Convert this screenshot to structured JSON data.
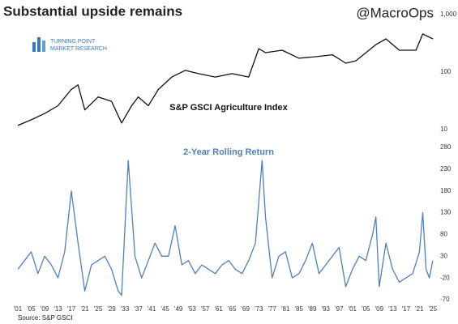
{
  "title": "Substantial upside remains",
  "handle": "@MacroOps",
  "logo": {
    "line1": "TURNING POINT",
    "line2": "MARKET RESEARCH"
  },
  "source": "Source: S&P GSCI",
  "chart_data": [
    {
      "type": "line",
      "title": "S&P GSCI Agriculture Index",
      "log": true,
      "xlim": [
        1901,
        2026
      ],
      "ylim": [
        10,
        1000
      ],
      "yticks": [
        10,
        100,
        {
          "value": 1000,
          "label": "1,000"
        }
      ],
      "x": [
        1901,
        1905,
        1909,
        1913,
        1917,
        1919,
        1921,
        1925,
        1929,
        1932,
        1935,
        1937,
        1940,
        1943,
        1947,
        1951,
        1955,
        1960,
        1965,
        1970,
        1973,
        1975,
        1980,
        1985,
        1990,
        1995,
        1999,
        2002,
        2008,
        2011,
        2015,
        2020,
        2022,
        2025
      ],
      "series": [
        {
          "color": "#111111",
          "values": [
            11.8,
            14.8,
            19,
            26,
            50,
            60,
            22,
            37,
            31,
            13,
            26,
            37,
            26,
            50,
            82,
            107,
            94,
            82,
            94,
            82,
            255,
            218,
            240,
            174,
            185,
            200,
            143,
            157,
            300,
            378,
            240,
            240,
            460,
            378
          ]
        }
      ]
    },
    {
      "type": "line",
      "title": "2-Year Rolling Return",
      "xlim": [
        1901,
        2026
      ],
      "ylim": [
        -70,
        280
      ],
      "yticks": [
        -70,
        -20,
        30,
        80,
        130,
        180,
        230,
        280
      ],
      "xticks": [
        {
          "value": 1901,
          "label": "'01"
        },
        {
          "value": 1905,
          "label": "'05"
        },
        {
          "value": 1909,
          "label": "'09"
        },
        {
          "value": 1913,
          "label": "'13"
        },
        {
          "value": 1917,
          "label": "'17"
        },
        {
          "value": 1921,
          "label": "'21"
        },
        {
          "value": 1925,
          "label": "'25"
        },
        {
          "value": 1929,
          "label": "'29"
        },
        {
          "value": 1933,
          "label": "'33"
        },
        {
          "value": 1937,
          "label": "'37"
        },
        {
          "value": 1941,
          "label": "'41"
        },
        {
          "value": 1945,
          "label": "'45"
        },
        {
          "value": 1949,
          "label": "'49"
        },
        {
          "value": 1953,
          "label": "'53"
        },
        {
          "value": 1957,
          "label": "'57"
        },
        {
          "value": 1961,
          "label": "'61"
        },
        {
          "value": 1965,
          "label": "'65"
        },
        {
          "value": 1969,
          "label": "'69"
        },
        {
          "value": 1973,
          "label": "'73"
        },
        {
          "value": 1977,
          "label": "'77"
        },
        {
          "value": 1981,
          "label": "'81"
        },
        {
          "value": 1985,
          "label": "'85"
        },
        {
          "value": 1989,
          "label": "'89"
        },
        {
          "value": 1993,
          "label": "'93"
        },
        {
          "value": 1997,
          "label": "'97"
        },
        {
          "value": 2001,
          "label": "'01"
        },
        {
          "value": 2005,
          "label": "'05"
        },
        {
          "value": 2009,
          "label": "'09"
        },
        {
          "value": 2013,
          "label": "'13"
        },
        {
          "value": 2017,
          "label": "'17"
        },
        {
          "value": 2021,
          "label": "'21"
        },
        {
          "value": 2025,
          "label": "'25"
        }
      ],
      "x": [
        1901,
        1903,
        1905,
        1907,
        1909,
        1911,
        1913,
        1915,
        1917,
        1919,
        1921,
        1923,
        1925,
        1927,
        1929,
        1931,
        1932,
        1934,
        1936,
        1938,
        1940,
        1942,
        1944,
        1946,
        1948,
        1950,
        1952,
        1954,
        1956,
        1958,
        1960,
        1962,
        1964,
        1966,
        1968,
        1970,
        1972,
        1974,
        1975,
        1977,
        1979,
        1981,
        1983,
        1985,
        1987,
        1989,
        1991,
        1993,
        1995,
        1997,
        1999,
        2001,
        2003,
        2005,
        2007,
        2008,
        2009,
        2011,
        2013,
        2015,
        2017,
        2019,
        2021,
        2022,
        2023,
        2024,
        2025
      ],
      "series": [
        {
          "color": "#4f7fc0",
          "values": [
            0,
            20,
            40,
            -10,
            30,
            10,
            -20,
            40,
            180,
            60,
            -50,
            10,
            20,
            30,
            0,
            -50,
            -60,
            250,
            30,
            -20,
            20,
            60,
            30,
            30,
            100,
            10,
            20,
            -10,
            10,
            0,
            -10,
            10,
            20,
            0,
            -10,
            20,
            60,
            250,
            120,
            -20,
            30,
            40,
            -20,
            -10,
            20,
            60,
            -10,
            10,
            30,
            50,
            -40,
            0,
            30,
            20,
            80,
            120,
            -40,
            60,
            0,
            -30,
            -20,
            -10,
            40,
            130,
            0,
            -20,
            20
          ]
        }
      ]
    }
  ]
}
